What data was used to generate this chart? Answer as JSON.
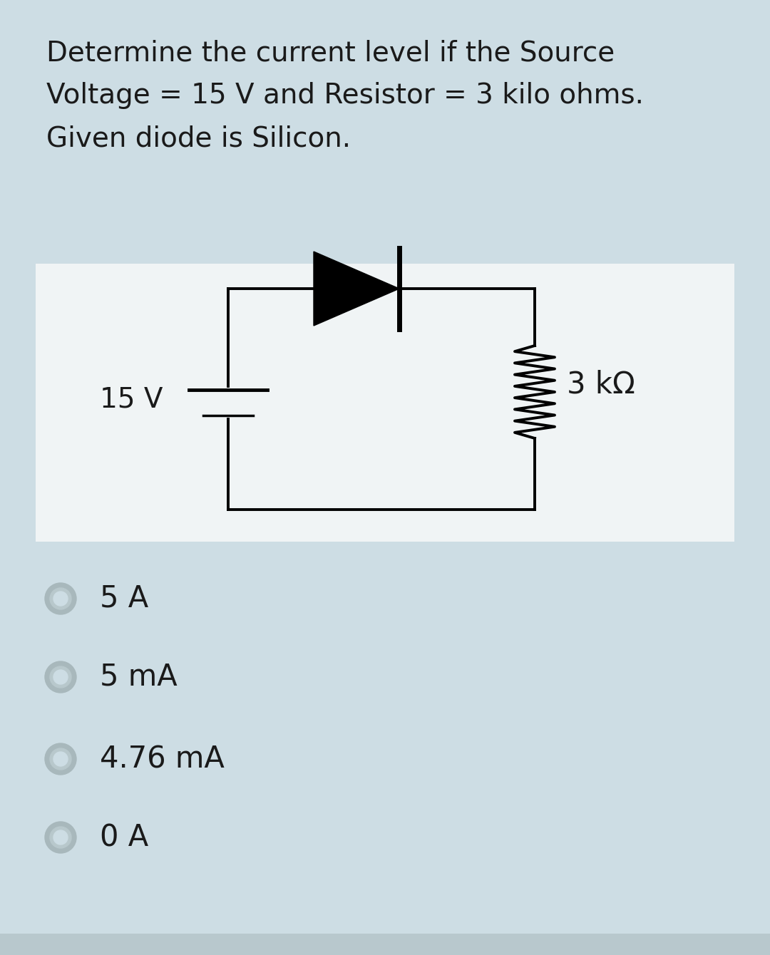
{
  "bg_color": "#cddde4",
  "circuit_bg": "#f0f4f5",
  "question_bg": "#cddde4",
  "bottom_bar_color": "#b8c8cd",
  "question_text_line1": "Determine the current level if the Source",
  "question_text_line2": "Voltage = 15 V and Resistor = 3 kilo ohms.",
  "question_text_line3": "Given diode is Silicon.",
  "voltage_label": "15 V",
  "resistor_label": "3 kΩ",
  "options": [
    "5 A",
    "5 mA",
    "4.76 mA",
    "0 A"
  ],
  "text_color": "#1a1a1a",
  "circuit_line_color": "#000000",
  "option_circle_outer": "#a8b8bc",
  "option_circle_inner": "#b8c8cc",
  "option_circle_fill": "#cddde4",
  "font_size_question": 28,
  "font_size_circuit_label": 24,
  "font_size_resistor_label": 26,
  "font_size_options": 30,
  "fig_width": 10.8,
  "fig_height": 13.4
}
